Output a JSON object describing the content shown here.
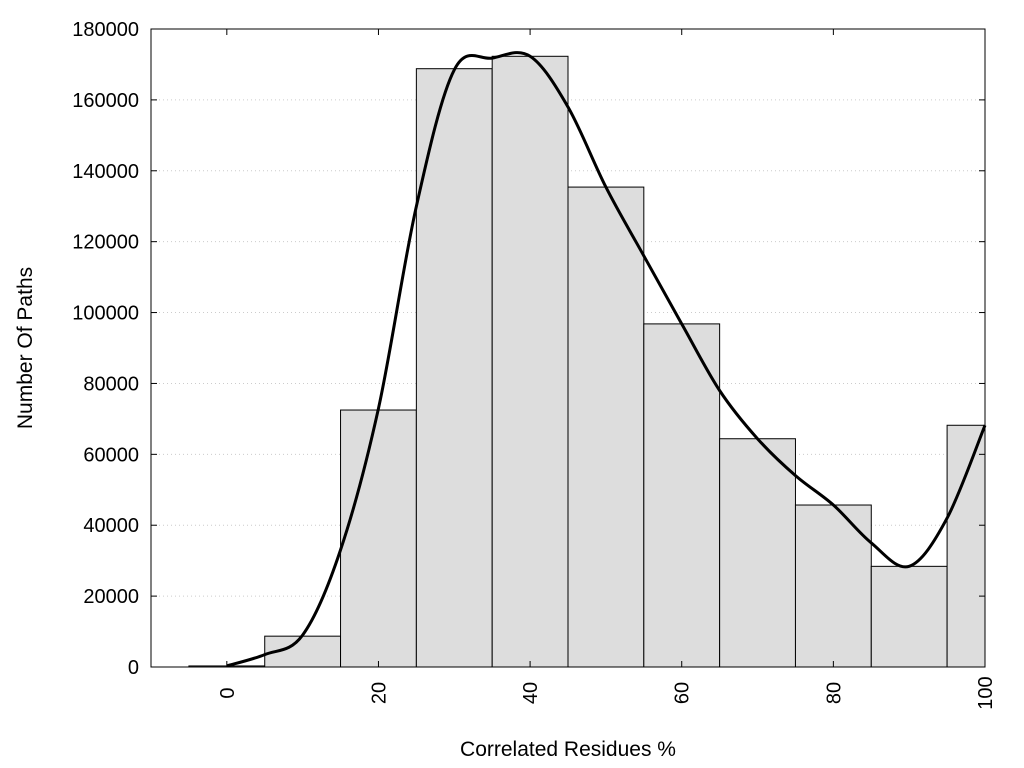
{
  "chart_data": {
    "type": "bar",
    "title": "",
    "xlabel": "Correlated Residues %",
    "ylabel": "Number Of Paths",
    "xlim": [
      -10,
      100
    ],
    "ylim": [
      0,
      180000
    ],
    "grid": "horizontal-dotted",
    "legend": "none",
    "x_ticks": [
      0,
      20,
      40,
      60,
      80,
      100
    ],
    "y_ticks": [
      0,
      20000,
      40000,
      60000,
      80000,
      100000,
      120000,
      140000,
      160000,
      180000
    ],
    "bins": [
      {
        "x0": -5,
        "x1": 5,
        "value": 300
      },
      {
        "x0": 5,
        "x1": 15,
        "value": 8700
      },
      {
        "x0": 15,
        "x1": 25,
        "value": 72500
      },
      {
        "x0": 25,
        "x1": 35,
        "value": 168800
      },
      {
        "x0": 35,
        "x1": 45,
        "value": 172300
      },
      {
        "x0": 45,
        "x1": 55,
        "value": 135400
      },
      {
        "x0": 55,
        "x1": 65,
        "value": 96800
      },
      {
        "x0": 65,
        "x1": 75,
        "value": 64400
      },
      {
        "x0": 75,
        "x1": 85,
        "value": 45700
      },
      {
        "x0": 85,
        "x1": 95,
        "value": 28400
      },
      {
        "x0": 95,
        "x1": 100,
        "value": 68200
      }
    ],
    "series": [
      {
        "type": "line",
        "x": [
          0,
          5,
          10,
          15,
          20,
          25,
          30,
          35,
          40,
          45,
          50,
          55,
          60,
          65,
          70,
          75,
          80,
          85,
          90,
          95,
          100
        ],
        "y": [
          300,
          3500,
          9000,
          33000,
          73000,
          130000,
          168500,
          171800,
          172300,
          158000,
          135400,
          116000,
          96800,
          78000,
          64400,
          54000,
          45700,
          35000,
          28400,
          42000,
          68200
        ]
      }
    ],
    "colors": {
      "bar_fill": "#dddddd",
      "bar_stroke": "#000000",
      "curve": "#000000",
      "grid": "#cccccc"
    }
  }
}
